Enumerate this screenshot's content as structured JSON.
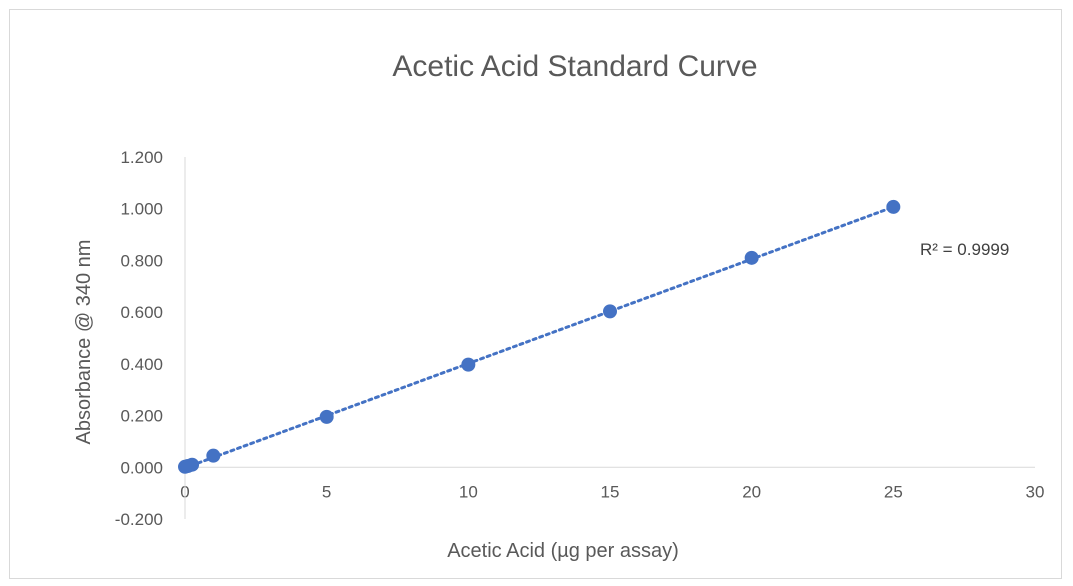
{
  "chart_data": {
    "type": "scatter",
    "title": "Acetic Acid Standard Curve",
    "xlabel": "Acetic Acid (µg per assay)",
    "ylabel": "Absorbance @ 340 nm",
    "xlim": [
      0,
      30
    ],
    "ylim": [
      -0.2,
      1.2
    ],
    "x_ticks": [
      0,
      5,
      10,
      15,
      20,
      25,
      30
    ],
    "x_tick_labels": [
      "0",
      "5",
      "10",
      "15",
      "20",
      "25",
      "30"
    ],
    "y_ticks": [
      -0.2,
      0,
      0.2,
      0.4,
      0.6,
      0.8,
      1.0,
      1.2
    ],
    "y_tick_labels": [
      "-0.200",
      "0.000",
      "0.200",
      "0.400",
      "0.600",
      "0.800",
      "1.000",
      "1.200"
    ],
    "grid": false,
    "series": [
      {
        "x": [
          0,
          0.1,
          0.25,
          1,
          5,
          10,
          15,
          20,
          25
        ],
        "y": [
          0.002,
          0.005,
          0.01,
          0.045,
          0.195,
          0.397,
          0.603,
          0.81,
          1.007
        ],
        "color": "#4472c4"
      }
    ],
    "trendline": {
      "type": "linear",
      "style": "dotted",
      "color": "#4472c4",
      "x_range": [
        0,
        25
      ],
      "slope": 0.04036,
      "intercept": -0.0022
    },
    "annotations": [
      {
        "text": "R² = 0.9999"
      }
    ]
  }
}
